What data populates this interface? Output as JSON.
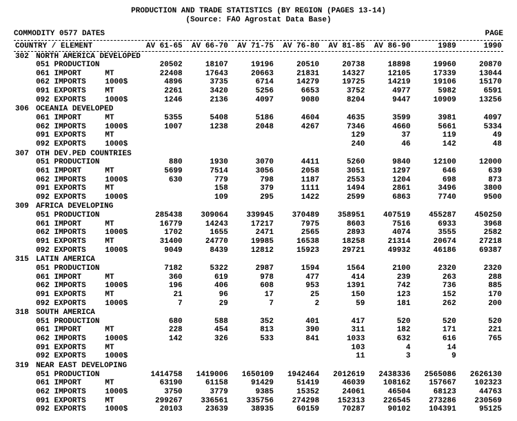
{
  "title_line1": "PRODUCTION AND TRADE STATISTICS (BY REGION (PAGES 13-14)",
  "title_line2": "(Source: FAO Agrostat Data Base)",
  "commodity": "COMMODITY 0577  DATES",
  "page_label": "PAGE",
  "col_header_left": "COUNTRY / ELEMENT",
  "periods": [
    "AV 61-65",
    "AV 66-70",
    "AV 71-75",
    "AV 76-80",
    "AV 81-85",
    "AV 86-90",
    "1989",
    "1990"
  ],
  "elements": [
    {
      "code": "051",
      "label": "PRODUCTION",
      "unit": ""
    },
    {
      "code": "061",
      "label": "IMPORT",
      "unit": "MT"
    },
    {
      "code": "062",
      "label": "IMPORTS",
      "unit": "1000$"
    },
    {
      "code": "091",
      "label": "EXPORTS",
      "unit": "MT"
    },
    {
      "code": "092",
      "label": "EXPORTS",
      "unit": "1000$"
    }
  ],
  "regions": [
    {
      "code": "302",
      "name": "NORTH AMERICA DEVELOPED",
      "rows": [
        [
          "20502",
          "18107",
          "19196",
          "20510",
          "20738",
          "18898",
          "19960",
          "20870"
        ],
        [
          "22408",
          "17643",
          "20663",
          "21831",
          "14327",
          "12105",
          "17339",
          "13044"
        ],
        [
          "4896",
          "3735",
          "6714",
          "14279",
          "19725",
          "14219",
          "19106",
          "15170"
        ],
        [
          "2261",
          "3420",
          "5256",
          "6653",
          "3752",
          "4977",
          "5982",
          "6591"
        ],
        [
          "1246",
          "2136",
          "4097",
          "9080",
          "8204",
          "9447",
          "10909",
          "13256"
        ]
      ]
    },
    {
      "code": "306",
      "name": "OCEANIA DEVELOPED",
      "rows": [
        null,
        [
          "5355",
          "5408",
          "5186",
          "4604",
          "4635",
          "3599",
          "3981",
          "4097"
        ],
        [
          "1007",
          "1238",
          "2048",
          "4267",
          "7346",
          "4660",
          "5661",
          "5334"
        ],
        [
          "",
          "",
          "",
          "",
          "129",
          "37",
          "119",
          "49"
        ],
        [
          "",
          "",
          "",
          "",
          "240",
          "46",
          "142",
          "48"
        ]
      ]
    },
    {
      "code": "307",
      "name": "OTH DEV.PED COUNTRIES",
      "rows": [
        [
          "880",
          "1930",
          "3070",
          "4411",
          "5260",
          "9840",
          "12100",
          "12000"
        ],
        [
          "5699",
          "7514",
          "3056",
          "2058",
          "3051",
          "1297",
          "646",
          "639"
        ],
        [
          "630",
          "779",
          "798",
          "1187",
          "2553",
          "1204",
          "698",
          "873"
        ],
        [
          "",
          "158",
          "379",
          "1111",
          "1494",
          "2861",
          "3496",
          "3800"
        ],
        [
          "",
          "109",
          "295",
          "1422",
          "2599",
          "6863",
          "7740",
          "9500"
        ]
      ]
    },
    {
      "code": "309",
      "name": "AFRICA DEVELOPING",
      "rows": [
        [
          "285438",
          "309064",
          "339945",
          "370489",
          "358951",
          "407519",
          "455287",
          "450250"
        ],
        [
          "16779",
          "14243",
          "17217",
          "7975",
          "8603",
          "7516",
          "6933",
          "3968"
        ],
        [
          "1702",
          "1655",
          "2471",
          "2565",
          "2893",
          "4074",
          "3555",
          "2582"
        ],
        [
          "31400",
          "24770",
          "19985",
          "16538",
          "18258",
          "21314",
          "20674",
          "27218"
        ],
        [
          "9049",
          "8439",
          "12812",
          "15923",
          "29721",
          "49932",
          "46186",
          "69387"
        ]
      ]
    },
    {
      "code": "315",
      "name": "LATIN AMERICA",
      "rows": [
        [
          "7182",
          "5322",
          "2987",
          "1594",
          "1564",
          "2100",
          "2320",
          "2320"
        ],
        [
          "360",
          "619",
          "978",
          "477",
          "414",
          "239",
          "263",
          "288"
        ],
        [
          "196",
          "406",
          "608",
          "953",
          "1391",
          "742",
          "736",
          "885"
        ],
        [
          "21",
          "96",
          "17",
          "25",
          "150",
          "123",
          "152",
          "170"
        ],
        [
          "7",
          "29",
          "7",
          "2",
          "59",
          "181",
          "262",
          "200"
        ]
      ]
    },
    {
      "code": "318",
      "name": "SOUTH AMERICA",
      "rows": [
        [
          "680",
          "588",
          "352",
          "401",
          "417",
          "520",
          "520",
          "520"
        ],
        [
          "228",
          "454",
          "813",
          "390",
          "311",
          "182",
          "171",
          "221"
        ],
        [
          "142",
          "326",
          "533",
          "841",
          "1033",
          "632",
          "616",
          "765"
        ],
        [
          "",
          "",
          "",
          "",
          "103",
          "4",
          "14",
          ""
        ],
        [
          "",
          "",
          "",
          "",
          "11",
          "3",
          "9",
          ""
        ]
      ]
    },
    {
      "code": "319",
      "name": "NEAR EAST DEVELOPING",
      "rows": [
        [
          "1414758",
          "1419006",
          "1650109",
          "1942464",
          "2012619",
          "2438336",
          "2565086",
          "2626130"
        ],
        [
          "63190",
          "61158",
          "91429",
          "51419",
          "46039",
          "108162",
          "157667",
          "102323"
        ],
        [
          "3750",
          "3779",
          "9385",
          "15352",
          "24061",
          "46504",
          "68123",
          "44763"
        ],
        [
          "299267",
          "336561",
          "335756",
          "274298",
          "152313",
          "226545",
          "273286",
          "230569"
        ],
        [
          "20103",
          "23639",
          "38935",
          "60159",
          "70287",
          "90102",
          "104391",
          "95125"
        ]
      ]
    }
  ]
}
